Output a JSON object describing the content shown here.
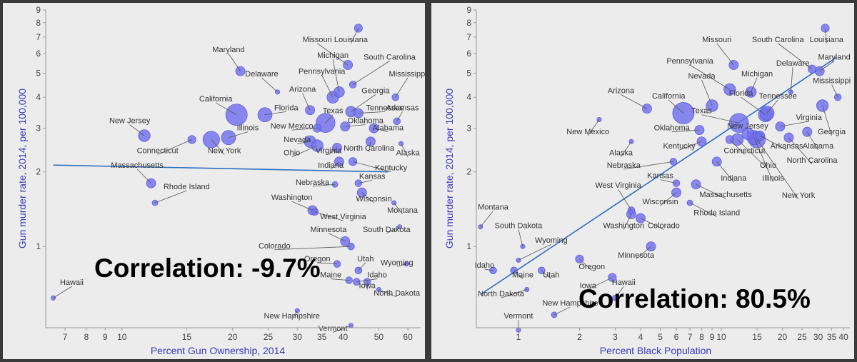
{
  "chart_data": [
    {
      "type": "scatter",
      "title": "",
      "xlabel": "Percent Gun Ownership, 2014",
      "ylabel": "Gun murder rate, 2014, per 100,000",
      "xscale": "log",
      "yscale": "log",
      "xlim": [
        6.2,
        65
      ],
      "ylim": [
        0.47,
        9
      ],
      "xticks": [
        7,
        8,
        9,
        10,
        15,
        20,
        25,
        30,
        35,
        40,
        50,
        60
      ],
      "xtick_labels": [
        "7",
        "8",
        "9",
        "10",
        "15",
        "20",
        "25",
        "30",
        "35",
        "40",
        "50",
        "60"
      ],
      "yticks": [
        1,
        2,
        3,
        4,
        5,
        6,
        7,
        8,
        9
      ],
      "ytick_labels": [
        "1",
        "2",
        "3",
        "4",
        "5",
        "6",
        "7",
        "8",
        "9"
      ],
      "annotation": "Correlation: -9.7%",
      "trend": [
        [
          6.5,
          2.13
        ],
        [
          53,
          2.0
        ]
      ],
      "grid": false,
      "color": "#6f6fee",
      "points": [
        {
          "label": "Hawaii",
          "x": 6.5,
          "y": 0.62,
          "size": 2,
          "lx": 7.3,
          "ly": 0.69
        },
        {
          "label": "Louisiana",
          "x": 44.0,
          "y": 7.6,
          "size": 5,
          "lx": 42.0,
          "ly": 6.6
        },
        {
          "label": "Missouri",
          "x": 41.2,
          "y": 5.4,
          "size": 6,
          "lx": 34.0,
          "ly": 6.6
        },
        {
          "label": "South Carolina",
          "x": 42.5,
          "y": 4.5,
          "size": 4,
          "lx": 53.5,
          "ly": 5.6
        },
        {
          "label": "Michigan",
          "x": 39.0,
          "y": 4.2,
          "size": 7,
          "lx": 37.5,
          "ly": 5.7
        },
        {
          "label": "Mississippi",
          "x": 55.5,
          "y": 4.0,
          "size": 4,
          "lx": 60.0,
          "ly": 4.8
        },
        {
          "label": "Maryland",
          "x": 21.0,
          "y": 5.1,
          "size": 6,
          "lx": 19.5,
          "ly": 6.0
        },
        {
          "label": "Delaware",
          "x": 26.5,
          "y": 4.2,
          "size": 2,
          "lx": 24.0,
          "ly": 4.8
        },
        {
          "label": "Pennsylvania",
          "x": 37.5,
          "y": 4.0,
          "size": 8,
          "lx": 35.0,
          "ly": 4.9
        },
        {
          "label": "Georgia",
          "x": 42.0,
          "y": 3.5,
          "size": 7,
          "lx": 49.0,
          "ly": 4.1
        },
        {
          "label": "Arizona",
          "x": 32.5,
          "y": 3.55,
          "size": 6,
          "lx": 31.0,
          "ly": 4.15
        },
        {
          "label": "Tennessee",
          "x": 44.0,
          "y": 3.45,
          "size": 6,
          "lx": 52.0,
          "ly": 3.5
        },
        {
          "label": "Arkansas",
          "x": 56.0,
          "y": 3.2,
          "size": 4,
          "lx": 58.0,
          "ly": 3.5
        },
        {
          "label": "California",
          "x": 20.5,
          "y": 3.4,
          "size": 16,
          "lx": 18.0,
          "ly": 3.8
        },
        {
          "label": "Florida",
          "x": 24.5,
          "y": 3.4,
          "size": 10,
          "lx": 28.0,
          "ly": 3.5
        },
        {
          "label": "Texas",
          "x": 35.8,
          "y": 3.15,
          "size": 14,
          "lx": 37.5,
          "ly": 3.4
        },
        {
          "label": "Oklahoma",
          "x": 40.5,
          "y": 3.05,
          "size": 6,
          "lx": 46.0,
          "ly": 3.1
        },
        {
          "label": "Alabama",
          "x": 48.5,
          "y": 3.0,
          "size": 6,
          "lx": 53.0,
          "ly": 2.9
        },
        {
          "label": "New Mexico",
          "x": 34.0,
          "y": 3.0,
          "size": 5,
          "lx": 29.0,
          "ly": 2.95
        },
        {
          "label": "Illinois",
          "x": 19.5,
          "y": 2.75,
          "size": 10,
          "lx": 22.0,
          "ly": 2.9
        },
        {
          "label": "New Jersey",
          "x": 11.5,
          "y": 2.8,
          "size": 8,
          "lx": 10.5,
          "ly": 3.1
        },
        {
          "label": "Connecticut",
          "x": 15.5,
          "y": 2.7,
          "size": 5,
          "lx": 12.5,
          "ly": 2.35
        },
        {
          "label": "New York",
          "x": 17.5,
          "y": 2.7,
          "size": 12,
          "lx": 19.0,
          "ly": 2.35
        },
        {
          "label": "Nevada",
          "x": 32.5,
          "y": 2.65,
          "size": 8,
          "lx": 30.0,
          "ly": 2.6
        },
        {
          "label": "North Carolina",
          "x": 47.5,
          "y": 2.65,
          "size": 6,
          "lx": 47.0,
          "ly": 2.4
        },
        {
          "label": "Ohio",
          "x": 34.0,
          "y": 2.55,
          "size": 8,
          "lx": 29.0,
          "ly": 2.3
        },
        {
          "label": "Virginia",
          "x": 38.5,
          "y": 2.5,
          "size": 6,
          "lx": 36.5,
          "ly": 2.35
        },
        {
          "label": "Alaska",
          "x": 57.5,
          "y": 2.6,
          "size": 2,
          "lx": 60.0,
          "ly": 2.3
        },
        {
          "label": "Indiana",
          "x": 39.0,
          "y": 2.2,
          "size": 6,
          "lx": 37.0,
          "ly": 2.05
        },
        {
          "label": "Kentucky",
          "x": 42.5,
          "y": 2.2,
          "size": 5,
          "lx": 54.0,
          "ly": 2.0
        },
        {
          "label": "Massachusetts",
          "x": 12.0,
          "y": 1.8,
          "size": 6,
          "lx": 11.0,
          "ly": 2.05
        },
        {
          "label": "Kansas",
          "x": 44.0,
          "y": 1.8,
          "size": 4,
          "lx": 48.0,
          "ly": 1.85
        },
        {
          "label": "Nebraska",
          "x": 38.0,
          "y": 1.78,
          "size": 3,
          "lx": 33.0,
          "ly": 1.75
        },
        {
          "label": "Rhode Island",
          "x": 12.3,
          "y": 1.5,
          "size": 3,
          "lx": 15.0,
          "ly": 1.68
        },
        {
          "label": "Wisconsin",
          "x": 45.0,
          "y": 1.65,
          "size": 6,
          "lx": 48.5,
          "ly": 1.5
        },
        {
          "label": "Washington",
          "x": 33.0,
          "y": 1.4,
          "size": 6,
          "lx": 29.0,
          "ly": 1.52
        },
        {
          "label": "West Virginia",
          "x": 33.5,
          "y": 1.38,
          "size": 4,
          "lx": 40.0,
          "ly": 1.27
        },
        {
          "label": "Montana",
          "x": 55.0,
          "y": 1.5,
          "size": 2,
          "lx": 58.0,
          "ly": 1.35
        },
        {
          "label": "Minnesota",
          "x": 40.5,
          "y": 1.05,
          "size": 6,
          "lx": 36.5,
          "ly": 1.13
        },
        {
          "label": "South Dakota",
          "x": 57.0,
          "y": 1.2,
          "size": 2,
          "lx": 52.5,
          "ly": 1.13
        },
        {
          "label": "Colorado",
          "x": 42.0,
          "y": 1.0,
          "size": 4,
          "lx": 26.0,
          "ly": 0.97
        },
        {
          "label": "Oregon",
          "x": 38.5,
          "y": 0.85,
          "size": 4,
          "lx": 34.0,
          "ly": 0.86
        },
        {
          "label": "Utah",
          "x": 44.0,
          "y": 0.8,
          "size": 4,
          "lx": 46.0,
          "ly": 0.86
        },
        {
          "label": "Wyoming",
          "x": 59.5,
          "y": 0.85,
          "size": 2,
          "lx": 56.0,
          "ly": 0.83
        },
        {
          "label": "Maine",
          "x": 41.5,
          "y": 0.73,
          "size": 4,
          "lx": 37.0,
          "ly": 0.74
        },
        {
          "label": "Idaho",
          "x": 43.5,
          "y": 0.72,
          "size": 4,
          "lx": 49.5,
          "ly": 0.74
        },
        {
          "label": "Iowa",
          "x": 46.5,
          "y": 0.72,
          "size": 4,
          "lx": 46.5,
          "ly": 0.67
        },
        {
          "label": "North Dakota",
          "x": 50.0,
          "y": 0.67,
          "size": 2,
          "lx": 56.0,
          "ly": 0.625
        },
        {
          "label": "New Hampshire",
          "x": 30.0,
          "y": 0.55,
          "size": 2,
          "lx": 29.0,
          "ly": 0.505
        },
        {
          "label": "Vermont",
          "x": 42.0,
          "y": 0.48,
          "size": 2,
          "lx": 37.5,
          "ly": 0.45
        }
      ]
    },
    {
      "type": "scatter",
      "title": "",
      "xlabel": "Percent Black Population",
      "ylabel": "Gun murder rate, 2014, per 100,000",
      "xscale": "log",
      "yscale": "log",
      "xlim": [
        0.62,
        43
      ],
      "ylim": [
        0.47,
        9
      ],
      "xticks": [
        1,
        2,
        3,
        4,
        5,
        6,
        7,
        8,
        9,
        10,
        15,
        20,
        25,
        30,
        35,
        40
      ],
      "xtick_labels": [
        "1",
        "2",
        "3",
        "4",
        "5",
        "6",
        "7",
        "8",
        "9",
        "10",
        "15",
        "20",
        "25",
        "30",
        "35",
        "40"
      ],
      "yticks": [
        1,
        2,
        3,
        4,
        5,
        6,
        7,
        8,
        9
      ],
      "ytick_labels": [
        "1",
        "2",
        "3",
        "4",
        "5",
        "6",
        "7",
        "8",
        "9"
      ],
      "annotation": "Correlation: 80.5%",
      "trend": [
        [
          0.65,
          0.64
        ],
        [
          37,
          5.8
        ]
      ],
      "grid": false,
      "color": "#6f6fee",
      "points": [
        {
          "label": "Louisiana",
          "x": 32.5,
          "y": 7.6,
          "size": 5,
          "lx": 33.0,
          "ly": 6.6
        },
        {
          "label": "Missouri",
          "x": 11.5,
          "y": 5.4,
          "size": 6,
          "lx": 9.5,
          "ly": 6.6
        },
        {
          "label": "South Carolina",
          "x": 28.0,
          "y": 5.2,
          "size": 5,
          "lx": 19.0,
          "ly": 6.6
        },
        {
          "label": "Maryland",
          "x": 30.5,
          "y": 5.1,
          "size": 6,
          "lx": 36.0,
          "ly": 5.6
        },
        {
          "label": "Delaware",
          "x": 22.0,
          "y": 4.2,
          "size": 2,
          "lx": 22.5,
          "ly": 5.3
        },
        {
          "label": "Pennsylvania",
          "x": 11.0,
          "y": 4.3,
          "size": 8,
          "lx": 7.0,
          "ly": 5.4
        },
        {
          "label": "Michigan",
          "x": 14.0,
          "y": 4.2,
          "size": 7,
          "lx": 15.0,
          "ly": 4.8
        },
        {
          "label": "Nevada",
          "x": 9.0,
          "y": 3.7,
          "size": 8,
          "lx": 8.0,
          "ly": 4.7
        },
        {
          "label": "Mississippi",
          "x": 37.5,
          "y": 4.0,
          "size": 4,
          "lx": 35.0,
          "ly": 4.5
        },
        {
          "label": "Arizona",
          "x": 4.3,
          "y": 3.6,
          "size": 6,
          "lx": 3.2,
          "ly": 4.1
        },
        {
          "label": "California",
          "x": 6.5,
          "y": 3.45,
          "size": 16,
          "lx": 5.5,
          "ly": 3.9
        },
        {
          "label": "Florida",
          "x": 16.5,
          "y": 3.4,
          "size": 10,
          "lx": 12.5,
          "ly": 4.0
        },
        {
          "label": "Tennessee",
          "x": 16.8,
          "y": 3.45,
          "size": 10,
          "lx": 19.0,
          "ly": 3.9
        },
        {
          "label": "Georgia",
          "x": 31.5,
          "y": 3.7,
          "size": 8,
          "lx": 35.0,
          "ly": 2.8
        },
        {
          "label": "Texas",
          "x": 12.2,
          "y": 3.15,
          "size": 14,
          "lx": 8.0,
          "ly": 3.4
        },
        {
          "label": "Virginia",
          "x": 19.5,
          "y": 3.05,
          "size": 6,
          "lx": 27.0,
          "ly": 3.2
        },
        {
          "label": "New Mexico",
          "x": 2.5,
          "y": 3.25,
          "size": 2,
          "lx": 2.2,
          "ly": 2.8
        },
        {
          "label": "New Jersey",
          "x": 13.5,
          "y": 2.85,
          "size": 8,
          "lx": 13.5,
          "ly": 2.95
        },
        {
          "label": "Oklahoma",
          "x": 7.8,
          "y": 2.95,
          "size": 6,
          "lx": 5.7,
          "ly": 2.9
        },
        {
          "label": "Alabama",
          "x": 26.5,
          "y": 2.9,
          "size": 6,
          "lx": 30.0,
          "ly": 2.45
        },
        {
          "label": "Illinois",
          "x": 14.5,
          "y": 2.75,
          "size": 10,
          "lx": 18.0,
          "ly": 1.82
        },
        {
          "label": "New York",
          "x": 15.0,
          "y": 2.7,
          "size": 12,
          "lx": 24.0,
          "ly": 1.55
        },
        {
          "label": "Connecticut",
          "x": 11.0,
          "y": 2.7,
          "size": 5,
          "lx": 13.0,
          "ly": 2.35
        },
        {
          "label": "Ohio",
          "x": 12.0,
          "y": 2.7,
          "size": 8,
          "lx": 17.0,
          "ly": 2.05
        },
        {
          "label": "Arkansas",
          "x": 15.5,
          "y": 2.8,
          "size": 6,
          "lx": 21.0,
          "ly": 2.45
        },
        {
          "label": "North Carolina",
          "x": 21.5,
          "y": 2.75,
          "size": 6,
          "lx": 28.0,
          "ly": 2.15
        },
        {
          "label": "Kentucky",
          "x": 8.0,
          "y": 2.65,
          "size": 6,
          "lx": 6.2,
          "ly": 2.45
        },
        {
          "label": "Alaska",
          "x": 3.6,
          "y": 2.65,
          "size": 2,
          "lx": 3.2,
          "ly": 2.3
        },
        {
          "label": "Indiana",
          "x": 9.5,
          "y": 2.2,
          "size": 6,
          "lx": 11.5,
          "ly": 1.82
        },
        {
          "label": "Nebraska",
          "x": 5.8,
          "y": 2.2,
          "size": 4,
          "lx": 3.3,
          "ly": 2.05
        },
        {
          "label": "Kansas",
          "x": 6.0,
          "y": 1.8,
          "size": 4,
          "lx": 5.0,
          "ly": 1.86
        },
        {
          "label": "Massachusetts",
          "x": 7.5,
          "y": 1.78,
          "size": 6,
          "lx": 10.5,
          "ly": 1.56
        },
        {
          "label": "West Virginia",
          "x": 3.6,
          "y": 1.4,
          "size": 4,
          "lx": 3.1,
          "ly": 1.7
        },
        {
          "label": "Wisconsin",
          "x": 6.0,
          "y": 1.65,
          "size": 6,
          "lx": 5.0,
          "ly": 1.46
        },
        {
          "label": "Rhode Island",
          "x": 7.0,
          "y": 1.5,
          "size": 3,
          "lx": 9.5,
          "ly": 1.32
        },
        {
          "label": "Washington",
          "x": 3.6,
          "y": 1.35,
          "size": 6,
          "lx": 3.3,
          "ly": 1.17
        },
        {
          "label": "Colorado",
          "x": 4.0,
          "y": 1.3,
          "size": 6,
          "lx": 5.2,
          "ly": 1.17
        },
        {
          "label": "Montana",
          "x": 0.65,
          "y": 1.2,
          "size": 2,
          "lx": 0.75,
          "ly": 1.39
        },
        {
          "label": "South Dakota",
          "x": 1.05,
          "y": 1.0,
          "size": 2,
          "lx": 1.0,
          "ly": 1.17
        },
        {
          "label": "Wyoming",
          "x": 1.0,
          "y": 0.88,
          "size": 2,
          "lx": 1.45,
          "ly": 1.02
        },
        {
          "label": "Minnesota",
          "x": 4.5,
          "y": 1.0,
          "size": 6,
          "lx": 3.8,
          "ly": 0.89
        },
        {
          "label": "Oregon",
          "x": 2.0,
          "y": 0.89,
          "size": 5,
          "lx": 2.3,
          "ly": 0.8
        },
        {
          "label": "Idaho",
          "x": 0.75,
          "y": 0.8,
          "size": 4,
          "lx": 0.68,
          "ly": 0.81
        },
        {
          "label": "Maine",
          "x": 0.95,
          "y": 0.8,
          "size": 4,
          "lx": 1.05,
          "ly": 0.74
        },
        {
          "label": "Utah",
          "x": 1.3,
          "y": 0.8,
          "size": 4,
          "lx": 1.45,
          "ly": 0.74
        },
        {
          "label": "Iowa",
          "x": 2.9,
          "y": 0.75,
          "size": 5,
          "lx": 2.2,
          "ly": 0.67
        },
        {
          "label": "North Dakota",
          "x": 1.1,
          "y": 0.67,
          "size": 2,
          "lx": 0.82,
          "ly": 0.62
        },
        {
          "label": "Hawaii",
          "x": 3.0,
          "y": 0.62,
          "size": 3,
          "lx": 3.3,
          "ly": 0.69
        },
        {
          "label": "New Hampshire",
          "x": 1.5,
          "y": 0.53,
          "size": 3,
          "lx": 1.8,
          "ly": 0.57
        },
        {
          "label": "Vermont",
          "x": 1.0,
          "y": 0.46,
          "size": 2,
          "lx": 1.0,
          "ly": 0.505
        }
      ]
    }
  ]
}
